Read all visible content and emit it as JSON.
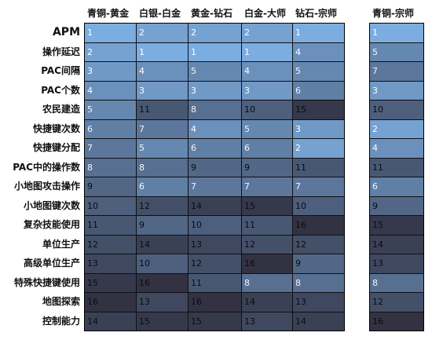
{
  "table": {
    "columns": [
      "青铜-黄金",
      "白银-白金",
      "黄金-钻石",
      "白金-大师",
      "钻石-宗师",
      "青铜-宗师"
    ],
    "rows": [
      {
        "label": "APM",
        "values": [
          1,
          2,
          2,
          2,
          1,
          1
        ]
      },
      {
        "label": "操作延迟",
        "values": [
          2,
          1,
          1,
          1,
          4,
          5
        ]
      },
      {
        "label": "PAC间隔",
        "values": [
          3,
          4,
          5,
          4,
          5,
          7
        ]
      },
      {
        "label": "PAC个数",
        "values": [
          4,
          3,
          3,
          3,
          6,
          3
        ]
      },
      {
        "label": "农民建造",
        "values": [
          5,
          11,
          8,
          10,
          15,
          10
        ]
      },
      {
        "label": "快捷键次数",
        "values": [
          6,
          7,
          4,
          5,
          3,
          2
        ]
      },
      {
        "label": "快捷键分配",
        "values": [
          7,
          5,
          6,
          6,
          2,
          4
        ]
      },
      {
        "label": "PAC中的操作数",
        "values": [
          8,
          8,
          9,
          9,
          11,
          11
        ]
      },
      {
        "label": "小地图攻击操作",
        "values": [
          9,
          6,
          7,
          7,
          7,
          6
        ]
      },
      {
        "label": "小地图键次数",
        "values": [
          10,
          12,
          14,
          15,
          10,
          9
        ]
      },
      {
        "label": "复杂技能使用",
        "values": [
          11,
          9,
          10,
          11,
          16,
          15
        ]
      },
      {
        "label": "单位生产",
        "values": [
          12,
          14,
          13,
          12,
          12,
          14
        ]
      },
      {
        "label": "高级单位生产",
        "values": [
          13,
          10,
          12,
          16,
          9,
          13
        ]
      },
      {
        "label": "特殊快捷键使用",
        "values": [
          15,
          16,
          11,
          8,
          8,
          8
        ]
      },
      {
        "label": "地图探索",
        "values": [
          16,
          13,
          16,
          14,
          13,
          12
        ]
      },
      {
        "label": "控制能力",
        "values": [
          14,
          15,
          15,
          13,
          14,
          16
        ]
      }
    ]
  }
}
